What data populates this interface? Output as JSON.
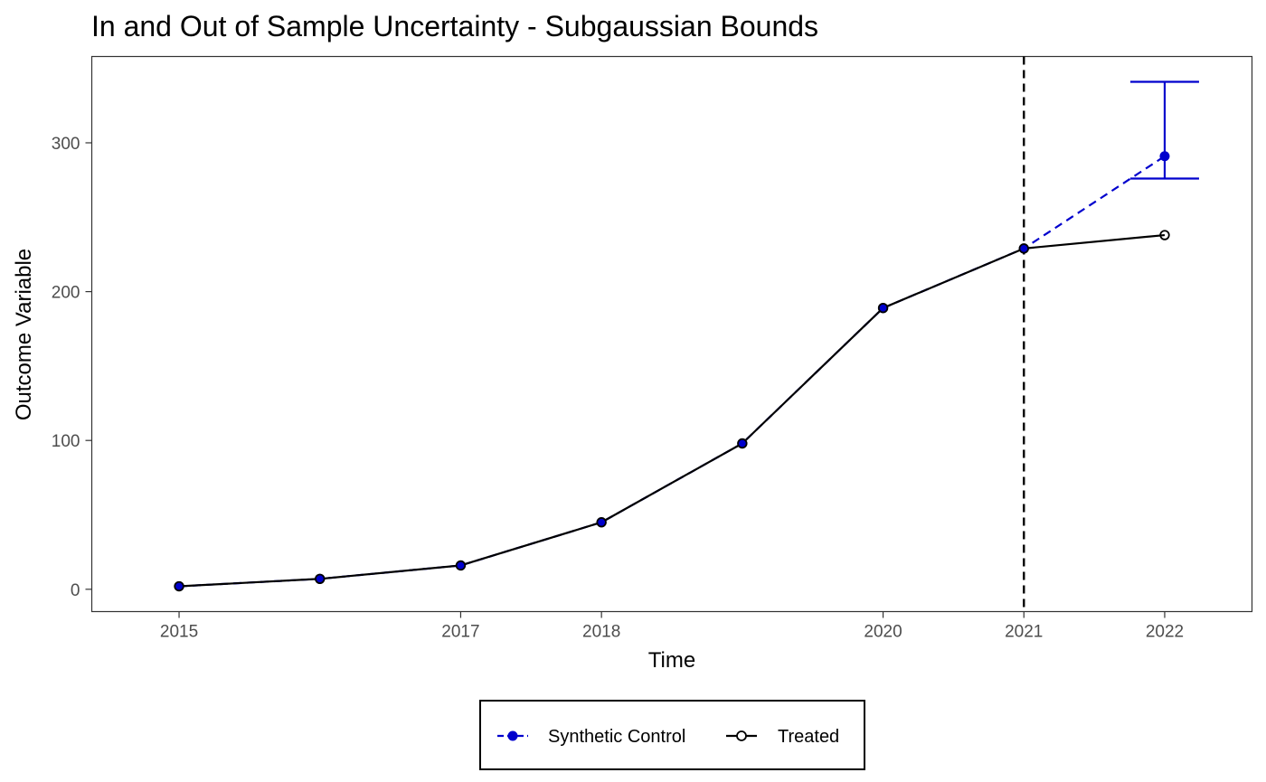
{
  "chart_data": {
    "type": "line",
    "title": "In and Out of Sample Uncertainty - Subgaussian Bounds",
    "xlabel": "Time",
    "ylabel": "Outcome Variable",
    "xlim": [
      2014.38,
      2022.62
    ],
    "ylim": [
      -15,
      358
    ],
    "x_ticks": [
      2015,
      2017,
      2018,
      2020,
      2021,
      2022
    ],
    "y_ticks": [
      0,
      100,
      200,
      300
    ],
    "grid": false,
    "treatment_time": 2021,
    "legend_position": "bottom",
    "series": [
      {
        "name": "Synthetic Control",
        "color": "#0000CD",
        "line_style": "dashed",
        "marker": "filled-circle",
        "x": [
          2015,
          2016,
          2017,
          2018,
          2019,
          2020,
          2021,
          2022
        ],
        "y": [
          2,
          7,
          16,
          45,
          98,
          189,
          229,
          291
        ]
      },
      {
        "name": "Treated",
        "color": "#000000",
        "line_style": "solid",
        "marker": "open-circle",
        "x": [
          2015,
          2016,
          2017,
          2018,
          2019,
          2020,
          2021,
          2022
        ],
        "y": [
          2,
          7,
          16,
          45,
          98,
          189,
          229,
          238
        ]
      }
    ],
    "error_bars": [
      {
        "x": 2022,
        "lower": 276,
        "upper": 341,
        "color": "#0000CD"
      }
    ]
  }
}
